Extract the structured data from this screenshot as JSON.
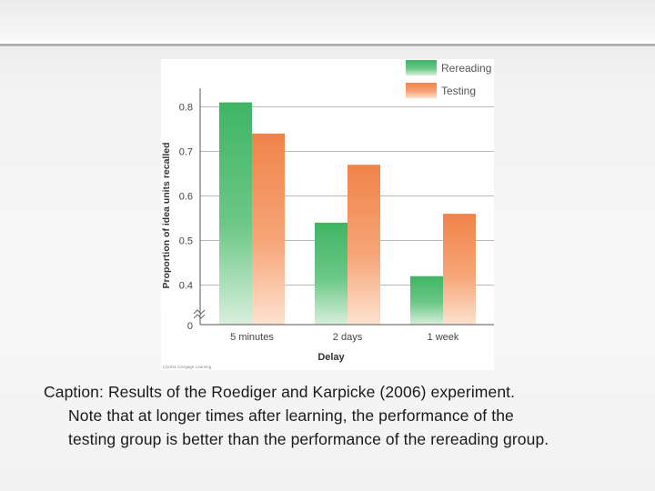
{
  "chart_data": {
    "type": "bar",
    "categories": [
      "5 minutes",
      "2 days",
      "1 week"
    ],
    "series": [
      {
        "name": "Rereading",
        "values": [
          0.81,
          0.54,
          0.42
        ],
        "color": "#4cba6a"
      },
      {
        "name": "Testing",
        "values": [
          0.74,
          0.67,
          0.56
        ],
        "color": "#f38a52"
      }
    ],
    "ylabel": "Proportion of idea units recalled",
    "xlabel": "Delay",
    "yticks": [
      0.8,
      0.7,
      0.6,
      0.5,
      0.4
    ],
    "ytick_labels": [
      "0.8",
      "0.7",
      "0.6",
      "0.5",
      "0.4"
    ],
    "axis_zero_label": "0",
    "axis_break": true,
    "ylim": [
      0.35,
      0.85
    ],
    "grid": true,
    "legend_position": "top-right",
    "credit": "(c)2011 Cengage Learning"
  },
  "caption": {
    "line1": "Caption: Results of the Roediger and Karpicke (2006) experiment.",
    "line2": "Note that at longer times after learning, the performance of the",
    "line3": "testing group is better than the performance of the rereading group."
  }
}
